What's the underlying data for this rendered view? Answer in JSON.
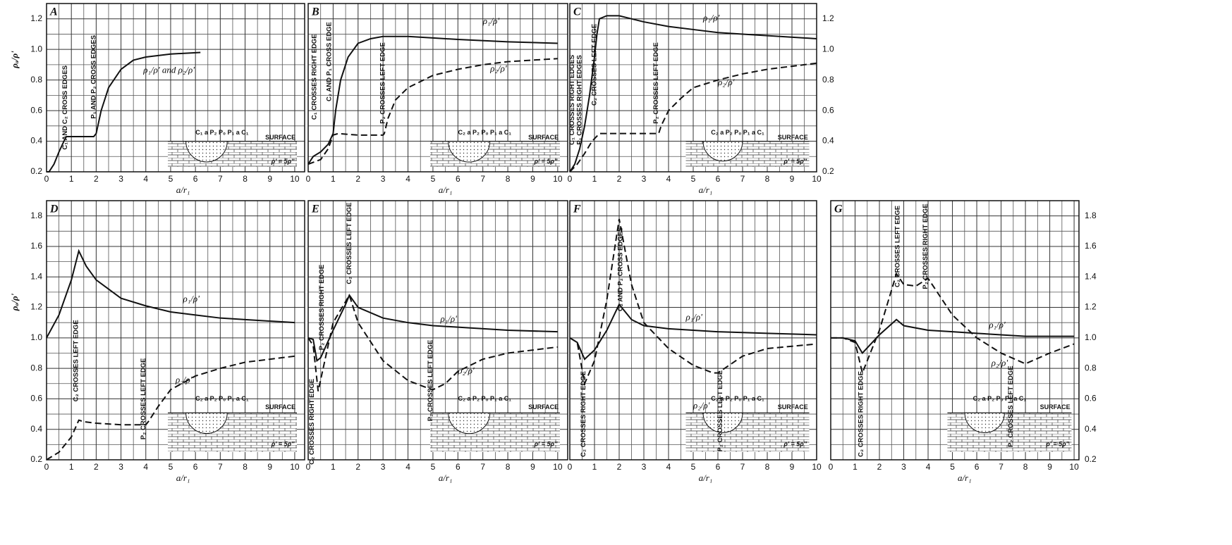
{
  "chart_data": [
    {
      "type": "line",
      "title": "A",
      "ylabel": "ρₐ/ρ'",
      "xlabel": "a/r₁",
      "xlim": [
        0,
        10.4
      ],
      "ylim": [
        0.2,
        1.3
      ],
      "grid": true,
      "ytick_side": "left",
      "xticks": [
        0,
        1,
        2,
        3,
        4,
        5,
        6,
        7,
        8,
        9,
        10
      ],
      "minor_xticks": [
        0.5,
        1.5,
        2.5,
        3.5,
        4.5,
        5.5,
        6.5,
        7.5,
        8.5,
        9.5
      ],
      "yticks": [
        0.2,
        0.4,
        0.6,
        0.8,
        {
          "value": 1,
          "label": "1.0"
        },
        1.2
      ],
      "minor_yticks": [
        0.3,
        0.5,
        0.7,
        0.9,
        1.1,
        1.3
      ],
      "series": [
        {
          "name": "ρ₁/ρ' and ρ₂/ρ'",
          "color": "#111",
          "dash": false,
          "x": [
            0,
            0.1,
            0.3,
            0.5,
            0.7,
            0.8,
            1,
            1.5,
            1.9,
            2,
            2.2,
            2.5,
            3,
            3.5,
            4,
            5,
            6.2
          ],
          "values": [
            0.2,
            0.2,
            0.25,
            0.33,
            0.4,
            0.43,
            0.43,
            0.43,
            0.43,
            0.45,
            0.6,
            0.75,
            0.87,
            0.93,
            0.95,
            0.97,
            0.98
          ]
        }
      ],
      "annotations": [
        "C₁ AND C₂ CROSS EDGES",
        "P₁ AND P₂ CROSS EDGES"
      ],
      "inset": {
        "electrodes": "C₁ a P₂ P₀ P₁ a C₁",
        "surface": "SURFACE",
        "ratio": "ρ' = 5ρ''"
      }
    },
    {
      "type": "line",
      "title": "B",
      "xlabel": "a/r₁",
      "xlim": [
        0,
        10.4
      ],
      "ylim": [
        0.2,
        1.3
      ],
      "grid": true,
      "ytick_side": "none",
      "xticks": [
        0,
        1,
        2,
        3,
        4,
        5,
        6,
        7,
        8,
        9,
        10
      ],
      "minor_xticks": [
        0.5,
        1.5,
        2.5,
        3.5,
        4.5,
        5.5,
        6.5,
        7.5,
        8.5,
        9.5
      ],
      "yticks": [
        0.2,
        0.4,
        0.6,
        0.8,
        {
          "value": 1,
          "label": "1.0"
        },
        1.2
      ],
      "minor_yticks": [
        0.3,
        0.5,
        0.7,
        0.9,
        1.1,
        1.3
      ],
      "series": [
        {
          "name": "ρ₁/ρ'",
          "color": "#111",
          "dash": false,
          "x": [
            0,
            0.2,
            0.5,
            0.8,
            1,
            1.1,
            1.3,
            1.6,
            2,
            2.5,
            3,
            4,
            5,
            6,
            8,
            10
          ],
          "values": [
            0.25,
            0.3,
            0.33,
            0.38,
            0.45,
            0.6,
            0.8,
            0.95,
            1.04,
            1.07,
            1.085,
            1.085,
            1.075,
            1.065,
            1.05,
            1.04
          ]
        },
        {
          "name": "ρ₂/ρ'",
          "color": "#111",
          "dash": true,
          "x": [
            0,
            0.5,
            0.8,
            1,
            1.2,
            2,
            3,
            3.05,
            3.2,
            3.5,
            4,
            5,
            6,
            7,
            8,
            10
          ],
          "values": [
            0.25,
            0.28,
            0.35,
            0.44,
            0.45,
            0.44,
            0.44,
            0.45,
            0.55,
            0.67,
            0.75,
            0.83,
            0.87,
            0.9,
            0.92,
            0.94
          ]
        }
      ],
      "annotations": [
        "C₁ CROSSES RIGHT EDGE",
        "C₂ AND P₁ CROSS EDGE",
        "P₂ CROSSES LEFT EDGE"
      ],
      "inset": {
        "electrodes": "C₂ a P₂ P₀ P₁ a C₁",
        "surface": "SURFACE",
        "ratio": "ρ' = 5ρ''"
      }
    },
    {
      "type": "line",
      "title": "C",
      "xlabel": "a/r₁",
      "xlim": [
        0,
        10
      ],
      "ylim": [
        0.2,
        1.3
      ],
      "grid": true,
      "ytick_side": "right",
      "xticks": [
        0,
        1,
        2,
        3,
        4,
        5,
        6,
        7,
        8,
        9,
        10
      ],
      "minor_xticks": [
        0.5,
        1.5,
        2.5,
        3.5,
        4.5,
        5.5,
        6.5,
        7.5,
        8.5,
        9.5
      ],
      "yticks": [
        0.2,
        0.4,
        0.6,
        0.8,
        {
          "value": 1,
          "label": "1.0"
        },
        1.2
      ],
      "minor_yticks": [
        0.3,
        0.5,
        0.7,
        0.9,
        1.1,
        1.3
      ],
      "series": [
        {
          "name": "ρ₁/ρ'",
          "color": "#111",
          "dash": false,
          "x": [
            0,
            0.2,
            0.4,
            0.6,
            0.8,
            1,
            1.1,
            1.2,
            1.5,
            2,
            3,
            4,
            5,
            6,
            7,
            8,
            10
          ],
          "values": [
            0.2,
            0.25,
            0.35,
            0.5,
            0.7,
            0.95,
            1.1,
            1.2,
            1.22,
            1.22,
            1.18,
            1.15,
            1.13,
            1.11,
            1.1,
            1.09,
            1.07
          ]
        },
        {
          "name": "ρ₂/ρ'",
          "color": "#111",
          "dash": true,
          "x": [
            0,
            0.3,
            0.6,
            0.9,
            1.2,
            2,
            3,
            3.6,
            3.7,
            4,
            4.5,
            5,
            6,
            7,
            8,
            10
          ],
          "values": [
            0.2,
            0.25,
            0.32,
            0.4,
            0.45,
            0.45,
            0.45,
            0.45,
            0.5,
            0.6,
            0.68,
            0.75,
            0.8,
            0.84,
            0.87,
            0.91
          ]
        }
      ],
      "annotations": [
        "C₁ CROSSES RIGHT EDGES",
        "P₁ CROSSES RIGHT EDGES",
        "C₂ CROSSES LEFT EDGE",
        "P₂ CROSSES LEFT EDGE"
      ],
      "inset": {
        "electrodes": "C₂ a P₂ P₀ P₁ a C₁",
        "surface": "SURFACE",
        "ratio": "ρ' = 5ρ''"
      }
    },
    {
      "type": "line",
      "title": "D",
      "ylabel": "ρₐ/ρ'",
      "xlabel": "a/r₁",
      "xlim": [
        0,
        10.4
      ],
      "ylim": [
        0.2,
        1.9
      ],
      "grid": true,
      "ytick_side": "left",
      "xticks": [
        0,
        1,
        2,
        3,
        4,
        5,
        6,
        7,
        8,
        9,
        10
      ],
      "minor_xticks": [
        0.5,
        1.5,
        2.5,
        3.5,
        4.5,
        5.5,
        6.5,
        7.5,
        8.5,
        9.5
      ],
      "yticks": [
        0.2,
        0.4,
        0.6,
        0.8,
        {
          "value": 1,
          "label": "1.0"
        },
        1.2,
        1.4,
        1.6,
        1.8
      ],
      "minor_yticks": [
        0.3,
        0.5,
        0.7,
        0.9,
        1.1,
        1.3,
        1.5,
        1.7,
        1.9
      ],
      "series": [
        {
          "name": "ρ₁/ρ'",
          "color": "#111",
          "dash": false,
          "x": [
            0,
            0.5,
            1,
            1.3,
            1.6,
            2,
            3,
            4,
            5,
            6,
            7,
            8,
            10
          ],
          "values": [
            1.0,
            1.15,
            1.38,
            1.57,
            1.47,
            1.38,
            1.26,
            1.21,
            1.17,
            1.15,
            1.13,
            1.12,
            1.1
          ]
        },
        {
          "name": "ρ₂/ρ'",
          "color": "#111",
          "dash": true,
          "x": [
            0,
            0.5,
            1,
            1.3,
            1.5,
            2,
            3,
            4,
            4.1,
            4.5,
            5,
            6,
            7,
            8,
            10
          ],
          "values": [
            0.2,
            0.25,
            0.35,
            0.46,
            0.45,
            0.44,
            0.43,
            0.43,
            0.45,
            0.55,
            0.66,
            0.75,
            0.8,
            0.84,
            0.88
          ]
        }
      ],
      "annotations": [
        "C₂ CROSSES LEFT EDGE",
        "P₂ CROSSES LEFT EDGE"
      ],
      "inset": {
        "electrodes": "C₂ a P₂ P₀ P₁ a C₁",
        "surface": "SURFACE",
        "ratio": "ρ' = 5ρ''"
      }
    },
    {
      "type": "line",
      "title": "E",
      "xlabel": "a/r₁",
      "xlim": [
        0,
        10.4
      ],
      "ylim": [
        0.2,
        1.9
      ],
      "grid": true,
      "ytick_side": "none",
      "xticks": [
        0,
        1,
        2,
        3,
        4,
        5,
        6,
        7,
        8,
        9,
        10
      ],
      "minor_xticks": [
        0.5,
        1.5,
        2.5,
        3.5,
        4.5,
        5.5,
        6.5,
        7.5,
        8.5,
        9.5
      ],
      "yticks": [
        0.2,
        0.4,
        0.6,
        0.8,
        {
          "value": 1,
          "label": "1.0"
        },
        1.2,
        1.4,
        1.6,
        1.8
      ],
      "minor_yticks": [
        0.3,
        0.5,
        0.7,
        0.9,
        1.1,
        1.3,
        1.5,
        1.7,
        1.9
      ],
      "series": [
        {
          "name": "ρ₁/ρ'",
          "color": "#111",
          "dash": false,
          "x": [
            0,
            0.2,
            0.35,
            0.5,
            1,
            1.5,
            1.65,
            2,
            3,
            4,
            5,
            6,
            8,
            10
          ],
          "values": [
            1.0,
            0.99,
            0.85,
            0.87,
            1.05,
            1.22,
            1.28,
            1.2,
            1.13,
            1.1,
            1.08,
            1.07,
            1.05,
            1.04
          ]
        },
        {
          "name": "ρ₂/ρ'",
          "color": "#111",
          "dash": true,
          "x": [
            0,
            0.2,
            0.4,
            0.6,
            1,
            1.65,
            2,
            3,
            4,
            4.8,
            5,
            5.5,
            6,
            7,
            8,
            10
          ],
          "values": [
            1.0,
            0.95,
            0.65,
            0.8,
            1.1,
            1.28,
            1.1,
            0.85,
            0.72,
            0.67,
            0.66,
            0.7,
            0.78,
            0.86,
            0.9,
            0.94
          ]
        }
      ],
      "annotations": [
        "C₂ CROSSES RIGHT EDGE",
        "P₂ CROSSES RIGHT EDGE",
        "C₂ CROSSES LEFT EDGE",
        "P₂ CROSSES LEFT EDGE"
      ],
      "inset": {
        "electrodes": "C₂ a P₂ P₀ P₁ a C₁",
        "surface": "SURFACE",
        "ratio": "ρ' = 5ρ''"
      }
    },
    {
      "type": "line",
      "title": "F",
      "xlabel": "a/r₁",
      "xlim": [
        0,
        10
      ],
      "ylim": [
        0.2,
        1.9
      ],
      "grid": true,
      "ytick_side": "none",
      "xticks": [
        0,
        1,
        2,
        3,
        4,
        5,
        6,
        7,
        8,
        9,
        10
      ],
      "minor_xticks": [
        0.5,
        1.5,
        2.5,
        3.5,
        4.5,
        5.5,
        6.5,
        7.5,
        8.5,
        9.5
      ],
      "yticks": [
        0.2,
        0.4,
        0.6,
        0.8,
        {
          "value": 1,
          "label": "1.0"
        },
        1.2,
        1.4,
        1.6,
        1.8
      ],
      "minor_yticks": [
        0.3,
        0.5,
        0.7,
        0.9,
        1.1,
        1.3,
        1.5,
        1.7,
        1.9
      ],
      "series": [
        {
          "name": "ρ₁/ρ'",
          "color": "#111",
          "dash": false,
          "x": [
            0,
            0.3,
            0.6,
            1,
            1.5,
            2,
            2.5,
            3,
            4,
            5,
            6,
            8,
            10
          ],
          "values": [
            1,
            0.97,
            0.86,
            0.92,
            1.05,
            1.22,
            1.12,
            1.08,
            1.06,
            1.05,
            1.04,
            1.03,
            1.02
          ]
        },
        {
          "name": "ρ₂/ρ'",
          "color": "#111",
          "dash": true,
          "x": [
            0,
            0.3,
            0.6,
            1,
            1.5,
            2,
            2.5,
            3,
            4,
            5,
            5.8,
            6,
            7,
            8,
            10
          ],
          "values": [
            1,
            0.97,
            0.7,
            0.85,
            1.25,
            1.78,
            1.35,
            1.1,
            0.93,
            0.82,
            0.77,
            0.77,
            0.88,
            0.93,
            0.96
          ]
        }
      ],
      "annotations": [
        "C₂ CROSSES RIGHT EDGE",
        "C₂ AND P₂ CROSS EDGES",
        "P₂ CROSSES LEFT EDGE"
      ],
      "inset": {
        "electrodes": "C₂ a P₂ P₀ P₁ a C₁",
        "surface": "SURFACE",
        "ratio": "ρ' = 5ρ''"
      }
    },
    {
      "type": "line",
      "title": "G",
      "xlabel": "a/r₁",
      "xlim": [
        0,
        10.2
      ],
      "ylim": [
        0.2,
        1.9
      ],
      "grid": true,
      "ytick_side": "right",
      "xticks": [
        0,
        1,
        2,
        3,
        4,
        5,
        6,
        7,
        8,
        9,
        10
      ],
      "minor_xticks": [
        0.5,
        1.5,
        2.5,
        3.5,
        4.5,
        5.5,
        6.5,
        7.5,
        8.5,
        9.5
      ],
      "yticks": [
        0.2,
        0.4,
        0.6,
        0.8,
        {
          "value": 1,
          "label": "1.0"
        },
        1.2,
        1.4,
        1.6,
        1.8
      ],
      "minor_yticks": [
        0.3,
        0.5,
        0.7,
        0.9,
        1.1,
        1.3,
        1.5,
        1.7,
        1.9
      ],
      "series": [
        {
          "name": "ρ₁/ρ'",
          "color": "#111",
          "dash": false,
          "x": [
            0,
            0.5,
            1,
            1.3,
            2,
            2.7,
            3,
            4,
            5,
            6,
            8,
            10
          ],
          "values": [
            1,
            1,
            0.98,
            0.9,
            1.02,
            1.12,
            1.08,
            1.05,
            1.04,
            1.03,
            1.01,
            1.01
          ]
        },
        {
          "name": "ρ₂/ρ'",
          "color": "#111",
          "dash": true,
          "x": [
            0,
            0.5,
            1,
            1.3,
            2,
            2.7,
            3,
            3.5,
            4,
            5,
            6,
            7,
            8,
            9,
            10
          ],
          "values": [
            1,
            1,
            0.97,
            0.77,
            1.05,
            1.42,
            1.35,
            1.34,
            1.39,
            1.15,
            1.0,
            0.9,
            0.83,
            0.9,
            0.96
          ]
        }
      ],
      "annotations": [
        "C₂ CROSSES RIGHT EDGE",
        "C₂ CROSSES LEFT EDGE",
        "P₂ CROSSES RIGHT EDGE",
        "P₂ CROSSES LEFT EDGE"
      ],
      "inset": {
        "electrodes": "C₂ a P₂ P₀ P₁ a C₁",
        "surface": "SURFACE",
        "ratio": "ρ' = 5ρ''"
      }
    }
  ]
}
